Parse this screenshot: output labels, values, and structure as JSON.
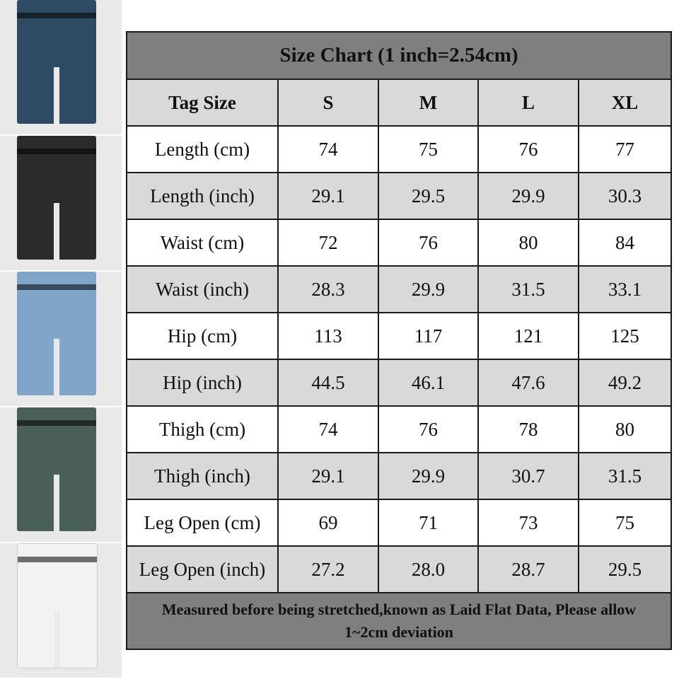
{
  "photos": [
    {
      "name": "dark-blue-wash-jorts",
      "color": "#2f4a63"
    },
    {
      "name": "black-wash-jorts",
      "color": "#2b2b2b"
    },
    {
      "name": "light-blue-wash-jorts",
      "color": "#7fa6c9"
    },
    {
      "name": "green-tint-wash-jorts",
      "color": "#4a5f57"
    },
    {
      "name": "white-jorts",
      "color": "#f2f2f0"
    }
  ],
  "table": {
    "title": "Size Chart (1 inch=2.54cm)",
    "headers": [
      "Tag Size",
      "S",
      "M",
      "L",
      "XL"
    ],
    "rows": [
      [
        "Length (cm)",
        "74",
        "75",
        "76",
        "77"
      ],
      [
        "Length (inch)",
        "29.1",
        "29.5",
        "29.9",
        "30.3"
      ],
      [
        "Waist (cm)",
        "72",
        "76",
        "80",
        "84"
      ],
      [
        "Waist (inch)",
        "28.3",
        "29.9",
        "31.5",
        "33.1"
      ],
      [
        "Hip (cm)",
        "113",
        "117",
        "121",
        "125"
      ],
      [
        "Hip (inch)",
        "44.5",
        "46.1",
        "47.6",
        "49.2"
      ],
      [
        "Thigh (cm)",
        "74",
        "76",
        "78",
        "80"
      ],
      [
        "Thigh (inch)",
        "29.1",
        "29.9",
        "30.7",
        "31.5"
      ],
      [
        "Leg Open (cm)",
        "69",
        "71",
        "73",
        "75"
      ],
      [
        "Leg Open (inch)",
        "27.2",
        "28.0",
        "28.7",
        "29.5"
      ]
    ],
    "footnote_line1": "Measured before being stretched,known as Laid Flat Data, Please allow",
    "footnote_line2": "1~2cm deviation"
  },
  "colors": {
    "header_dark": "#7f7f7f",
    "header_light": "#d9d9d9",
    "border": "#1a1a1a"
  }
}
